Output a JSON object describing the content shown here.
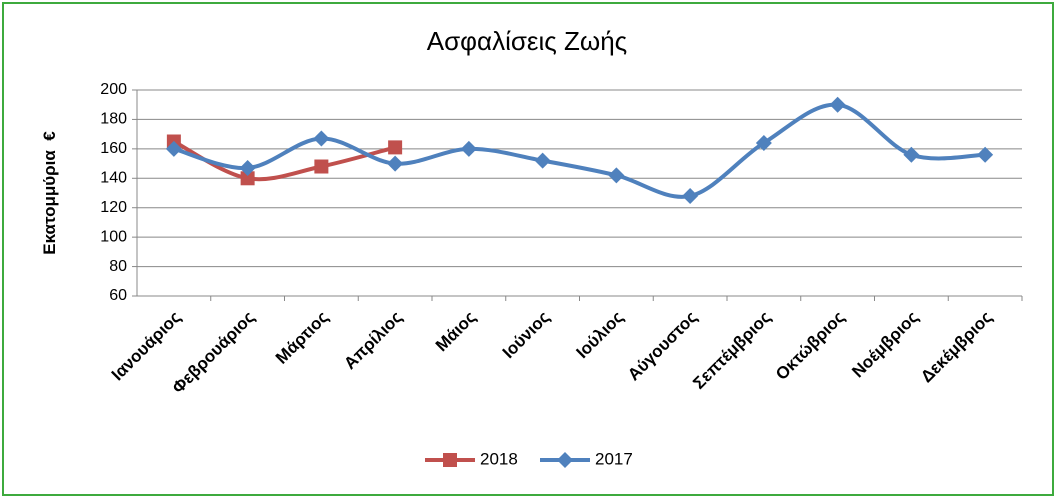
{
  "chart_data": {
    "type": "line",
    "title": "Ασφαλίσεις Ζωής",
    "y_label": "Εκατομμύρια  €",
    "categories": [
      "Ιανουάριος",
      "Φεβρουάριος",
      "Μάρτιος",
      "Απρίλιος",
      "Μάιος",
      "Ιούνιος",
      "Ιούλιος",
      "Αύγουστος",
      "Σεπτέμβριος",
      "Οκτώβριος",
      "Νοέμβριος",
      "Δεκέμβριος"
    ],
    "series": [
      {
        "name": "2018",
        "color": "#c0504d",
        "marker": "square",
        "values": [
          165,
          140,
          148,
          161,
          null,
          null,
          null,
          null,
          null,
          null,
          null,
          null
        ]
      },
      {
        "name": "2017",
        "color": "#4f81bd",
        "marker": "diamond",
        "values": [
          160,
          147,
          167,
          150,
          160,
          152,
          142,
          128,
          164,
          190,
          156,
          156
        ]
      }
    ],
    "ylim": [
      60,
      200
    ],
    "yticks": [
      60,
      80,
      100,
      120,
      140,
      160,
      180,
      200
    ],
    "grid": true,
    "legend": "bottom"
  }
}
